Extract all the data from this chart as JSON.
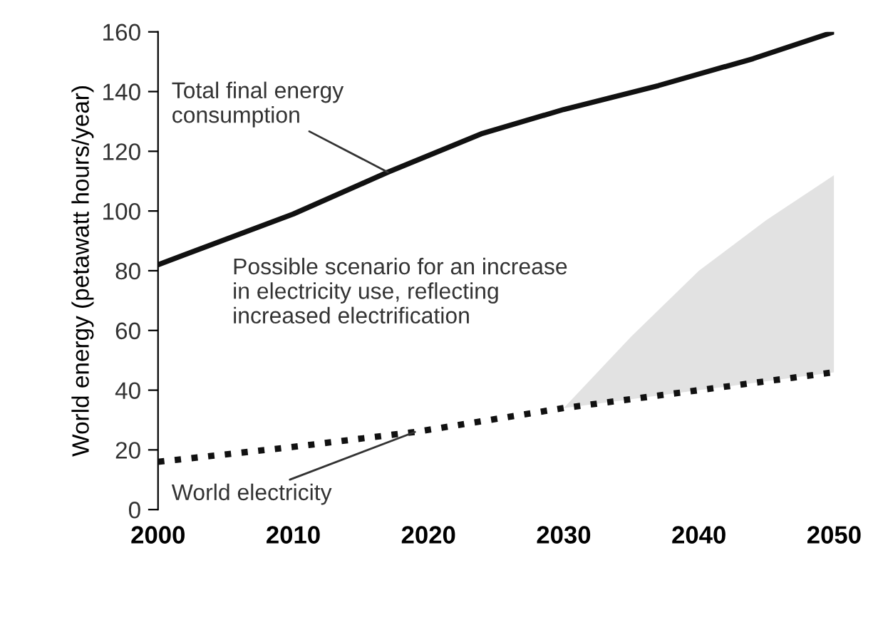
{
  "chart_data": {
    "type": "line",
    "ylabel": "World energy (petawatt hours/year)",
    "xlim": [
      2000,
      2050
    ],
    "xticks": [
      2000,
      2010,
      2020,
      2030,
      2040,
      2050
    ],
    "ylim": [
      0,
      160
    ],
    "yticks": [
      0,
      20,
      40,
      60,
      80,
      100,
      120,
      140,
      160
    ],
    "grid": false,
    "marker": "none",
    "series": [
      {
        "color": "#111111",
        "line_style": "solid",
        "x": [
          2000,
          2010,
          2017,
          2024,
          2030,
          2037,
          2044,
          2050
        ],
        "values": [
          82,
          99,
          113,
          126,
          134,
          142,
          151,
          160
        ]
      },
      {
        "color": "#111111",
        "line_style": "dotted",
        "x": [
          2000,
          2010,
          2019,
          2030,
          2035,
          2040,
          2045,
          2050
        ],
        "values": [
          16,
          21,
          26,
          34,
          37,
          40,
          43,
          46
        ],
        "lower": [
          null,
          null,
          null,
          34,
          37,
          40,
          43,
          46
        ],
        "upper": [
          null,
          null,
          null,
          34,
          58,
          80,
          97,
          112
        ]
      }
    ],
    "annotations": [
      {
        "text": "Total final energy\nconsumption",
        "x": 2017,
        "y": 113
      },
      "Possible scenario for an increase\nin electricity use, reflecting\nincreased electrification",
      {
        "text": "World electricity",
        "x": 2019,
        "y": 26
      }
    ]
  }
}
